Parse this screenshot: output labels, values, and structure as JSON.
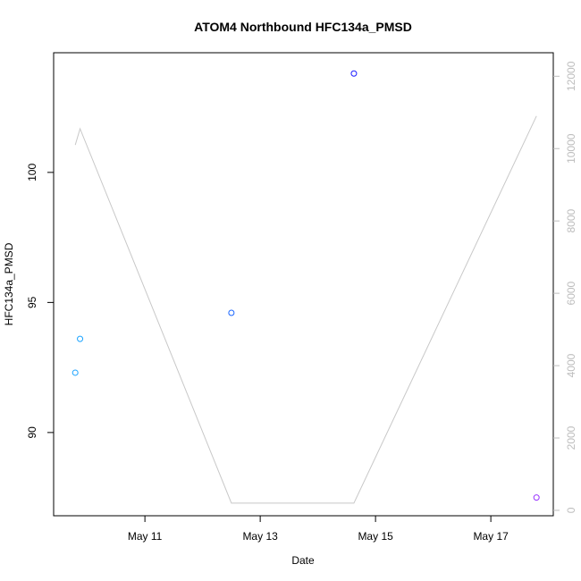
{
  "chart_data": {
    "type": "scatter",
    "title": "ATOM4 Northbound HFC134a_PMSD",
    "xlabel": "Date",
    "ylabel": "HFC134a_PMSD",
    "x_axis": {
      "type": "date",
      "range": [
        "2017-05-09T10:00",
        "2017-05-18T02:00"
      ],
      "ticks": [
        "May 11",
        "May 13",
        "May 15",
        "May 17"
      ],
      "tick_values": [
        "2017-05-11T00:00",
        "2017-05-13T00:00",
        "2017-05-15T00:00",
        "2017-05-17T00:00"
      ]
    },
    "y_axis_left": {
      "range": [
        86.8,
        104.6
      ],
      "ticks": [
        90,
        95,
        100
      ]
    },
    "y_axis_right": {
      "range": [
        -150,
        12650
      ],
      "ticks": [
        0,
        2000,
        4000,
        6000,
        8000,
        10000,
        12000
      ],
      "color": "#bdbdbd"
    },
    "points": [
      {
        "x": "2017-05-09T19:00",
        "y": 92.3,
        "color": "#1aa3ff"
      },
      {
        "x": "2017-05-09T21:00",
        "y": 93.6,
        "color": "#1aa3ff"
      },
      {
        "x": "2017-05-12T12:00",
        "y": 94.6,
        "color": "#1a66ff"
      },
      {
        "x": "2017-05-14T15:00",
        "y": 103.8,
        "color": "#1a1aff"
      },
      {
        "x": "2017-05-17T19:00",
        "y": 87.5,
        "color": "#9933ff"
      }
    ],
    "line_series": {
      "axis": "right",
      "color": "#c8c8c8",
      "points": [
        {
          "x": "2017-05-09T19:00",
          "y": 10100
        },
        {
          "x": "2017-05-09T21:00",
          "y": 10550
        },
        {
          "x": "2017-05-12T12:00",
          "y": 200
        },
        {
          "x": "2017-05-14T15:00",
          "y": 200
        },
        {
          "x": "2017-05-17T19:00",
          "y": 10900
        }
      ]
    },
    "grid": false
  }
}
